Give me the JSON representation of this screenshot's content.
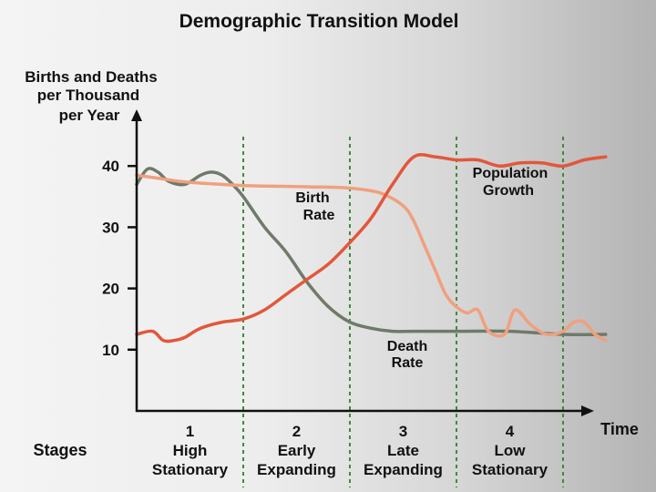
{
  "chart_data": {
    "type": "line",
    "title": "Demographic Transition Model",
    "ylabel": [
      "Births and Deaths",
      "per Thousand",
      "per Year"
    ],
    "xlabel": "Time",
    "ylim": [
      0,
      50
    ],
    "y_ticks": [
      "10",
      "20",
      "30",
      "40"
    ],
    "y_tick_values": [
      10,
      20,
      30,
      40
    ],
    "grid": false,
    "stages_label": "Stages",
    "stages": [
      {
        "number": "1",
        "line1": "High",
        "line2": "Stationary"
      },
      {
        "number": "2",
        "line1": "Early",
        "line2": "Expanding"
      },
      {
        "number": "3",
        "line1": "Late",
        "line2": "Expanding"
      },
      {
        "number": "4",
        "line1": "Low",
        "line2": "Stationary"
      }
    ],
    "stage_boundaries": [
      1,
      2,
      3,
      4
    ],
    "series": [
      {
        "name": "Birth Rate",
        "label_lines": [
          "Birth",
          "Rate"
        ],
        "color": "#f0a07e",
        "x": [
          0,
          0.2,
          0.4,
          0.6,
          0.8,
          1.0,
          1.3,
          1.6,
          1.9,
          2.1,
          2.3,
          2.5,
          2.6,
          2.7,
          2.8,
          2.9,
          3.0,
          3.1,
          3.2,
          3.3,
          3.45,
          3.55,
          3.7,
          3.85,
          4.0,
          4.1,
          4.2,
          4.3,
          4.4
        ],
        "values": [
          38.5,
          38,
          37.5,
          37.2,
          37,
          36.8,
          36.7,
          36.6,
          36.5,
          36.2,
          35.5,
          33.5,
          31,
          27,
          23,
          19,
          17,
          16,
          16.5,
          13,
          12.5,
          16.5,
          14,
          12.5,
          13,
          14.5,
          14.5,
          12.5,
          11.5
        ]
      },
      {
        "name": "Death Rate",
        "label_lines": [
          "Death",
          "Rate"
        ],
        "color": "#6f7a6a",
        "x": [
          0,
          0.1,
          0.2,
          0.3,
          0.45,
          0.6,
          0.7,
          0.8,
          0.9,
          1.0,
          1.2,
          1.4,
          1.6,
          1.8,
          2.0,
          2.2,
          2.4,
          2.6,
          3.0,
          3.5,
          4.0,
          4.4
        ],
        "values": [
          37,
          39.5,
          39,
          37.5,
          37,
          38.5,
          39,
          38.5,
          37,
          35,
          30,
          26,
          21,
          17,
          14.5,
          13.5,
          13,
          13,
          13,
          13,
          12.5,
          12.5
        ]
      },
      {
        "name": "Population Growth",
        "label_lines": [
          "Population",
          "Growth"
        ],
        "color": "#e2573b",
        "x": [
          0,
          0.15,
          0.25,
          0.35,
          0.45,
          0.6,
          0.8,
          1.0,
          1.2,
          1.4,
          1.6,
          1.8,
          2.0,
          2.2,
          2.4,
          2.6,
          2.8,
          3.0,
          3.2,
          3.4,
          3.6,
          3.8,
          4.0,
          4.2,
          4.4
        ],
        "values": [
          12.5,
          13,
          11.5,
          11.5,
          12,
          13.5,
          14.5,
          15,
          16.5,
          19,
          21.5,
          24,
          27.5,
          31.5,
          37,
          41.5,
          41.5,
          41,
          41,
          40,
          40.5,
          40.5,
          40,
          41,
          41.5
        ]
      }
    ]
  }
}
